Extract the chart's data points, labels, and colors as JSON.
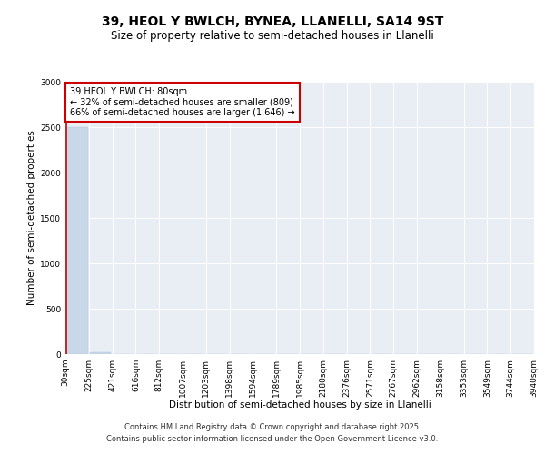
{
  "title": "39, HEOL Y BWLCH, BYNEA, LLANELLI, SA14 9ST",
  "subtitle": "Size of property relative to semi-detached houses in Llanelli",
  "xlabel": "Distribution of semi-detached houses by size in Llanelli",
  "ylabel": "Number of semi-detached properties",
  "bar_values": [
    2500,
    22,
    5,
    2,
    1,
    1,
    1,
    0,
    0,
    0,
    0,
    0,
    0,
    0,
    0,
    0,
    0,
    0,
    0,
    0
  ],
  "bin_labels": [
    "30sqm",
    "225sqm",
    "421sqm",
    "616sqm",
    "812sqm",
    "1007sqm",
    "1203sqm",
    "1398sqm",
    "1594sqm",
    "1789sqm",
    "1985sqm",
    "2180sqm",
    "2376sqm",
    "2571sqm",
    "2767sqm",
    "2962sqm",
    "3158sqm",
    "3353sqm",
    "3549sqm",
    "3744sqm",
    "3940sqm"
  ],
  "bar_color": "#c8d8e8",
  "bar_edge_color": "#b0c4d8",
  "annotation_text": "39 HEOL Y BWLCH: 80sqm\n← 32% of semi-detached houses are smaller (809)\n66% of semi-detached houses are larger (1,646) →",
  "annotation_box_color": "#ffffff",
  "annotation_border_color": "#cc0000",
  "property_line_color": "#cc0000",
  "ylim": [
    0,
    3000
  ],
  "yticks": [
    0,
    500,
    1000,
    1500,
    2000,
    2500,
    3000
  ],
  "background_color": "#e8eef4",
  "footer_line1": "Contains HM Land Registry data © Crown copyright and database right 2025.",
  "footer_line2": "Contains public sector information licensed under the Open Government Licence v3.0.",
  "title_fontsize": 10,
  "subtitle_fontsize": 8.5,
  "axis_label_fontsize": 7.5,
  "tick_fontsize": 6.5,
  "annotation_fontsize": 7,
  "footer_fontsize": 6
}
